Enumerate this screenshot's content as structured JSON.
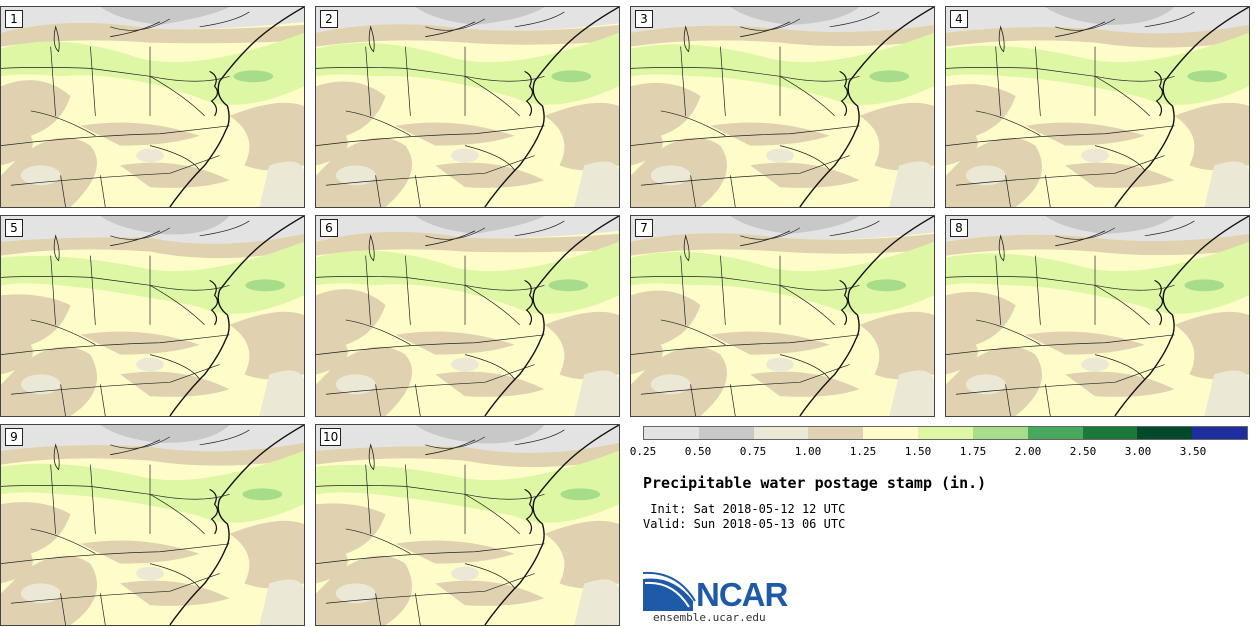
{
  "panels": [
    {
      "label": "1"
    },
    {
      "label": "2"
    },
    {
      "label": "3"
    },
    {
      "label": "4"
    },
    {
      "label": "5"
    },
    {
      "label": "6"
    },
    {
      "label": "7"
    },
    {
      "label": "8"
    },
    {
      "label": "9"
    },
    {
      "label": "10"
    }
  ],
  "colorbar": {
    "colors": [
      "#e3e3e3",
      "#c8c8c8",
      "#ebe9d6",
      "#e0d2b0",
      "#fefdc9",
      "#def7a4",
      "#a6dc8a",
      "#46a95c",
      "#1a7a3a",
      "#00492a",
      "#1e2ea0"
    ],
    "ticks": [
      "0.25",
      "0.50",
      "0.75",
      "1.00",
      "1.25",
      "1.50",
      "1.75",
      "2.00",
      "2.50",
      "3.00",
      "3.50"
    ]
  },
  "legend": {
    "title": "Precipitable water postage stamp (in.)",
    "init": " Init: Sat 2018-05-12 12 UTC",
    "valid": "Valid: Sun 2018-05-13 06 UTC"
  },
  "logo": {
    "text": "NCAR",
    "url": "ensemble.ucar.edu",
    "brand_color": "#1f5aa8"
  }
}
